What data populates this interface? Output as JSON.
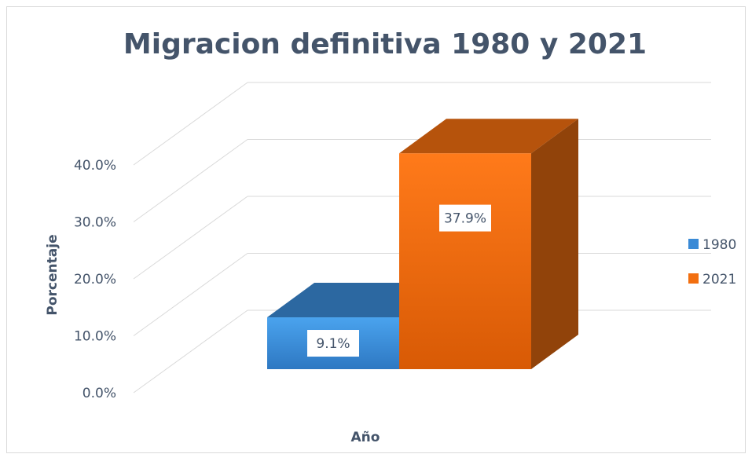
{
  "chart_data": {
    "type": "bar3d",
    "title": "Migracion definitiva 1980 y 2021",
    "x_label": "Año",
    "y_label": "Porcentaje",
    "categories": [
      null
    ],
    "series": [
      {
        "name": "1980",
        "color": "#3a8ad6",
        "values": [
          9.1
        ],
        "value_labels": [
          "9.1%"
        ]
      },
      {
        "name": "2021",
        "color": "#f26f10",
        "values": [
          37.9
        ],
        "value_labels": [
          "37.9%"
        ]
      }
    ],
    "ylim": [
      0,
      40
    ],
    "yticks": [
      {
        "value": 0,
        "label": "0.0%"
      },
      {
        "value": 10,
        "label": "10.0%"
      },
      {
        "value": 20,
        "label": "20.0%"
      },
      {
        "value": 30,
        "label": "30.0%"
      },
      {
        "value": 40,
        "label": "40.0%"
      }
    ],
    "grid": true,
    "legend": "right"
  }
}
